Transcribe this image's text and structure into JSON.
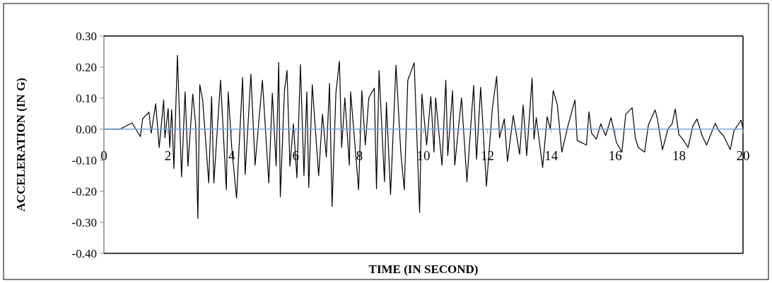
{
  "chart_data": {
    "type": "line",
    "xlabel": "TIME (IN SECOND)",
    "ylabel": "ACCELERATION (IN G)",
    "x": [
      0,
      0.5,
      0.88,
      1.14,
      1.21,
      1.41,
      1.48,
      1.62,
      1.73,
      1.87,
      1.91,
      2.01,
      2.06,
      2.12,
      2.19,
      2.3,
      2.43,
      2.54,
      2.63,
      2.78,
      2.87,
      2.94,
      3.0,
      3.09,
      3.28,
      3.37,
      3.44,
      3.65,
      3.83,
      3.89,
      4.0,
      4.15,
      4.34,
      4.42,
      4.6,
      4.73,
      4.96,
      5.16,
      5.27,
      5.39,
      5.47,
      5.52,
      5.65,
      5.73,
      5.82,
      5.93,
      6.04,
      6.15,
      6.26,
      6.35,
      6.41,
      6.52,
      6.72,
      6.84,
      6.96,
      7.06,
      7.14,
      7.26,
      7.37,
      7.44,
      7.54,
      7.68,
      7.72,
      7.97,
      8.07,
      8.18,
      8.29,
      8.46,
      8.53,
      8.61,
      8.78,
      8.84,
      8.97,
      9.14,
      9.29,
      9.4,
      9.51,
      9.71,
      9.8,
      9.88,
      9.95,
      10.1,
      10.23,
      10.33,
      10.38,
      10.58,
      10.7,
      10.76,
      10.91,
      10.98,
      11.19,
      11.36,
      11.57,
      11.66,
      11.79,
      11.97,
      12.16,
      12.29,
      12.38,
      12.53,
      12.63,
      12.81,
      13.01,
      13.12,
      13.23,
      13.4,
      13.46,
      13.53,
      13.73,
      13.87,
      13.97,
      14.06,
      14.19,
      14.33,
      14.52,
      14.74,
      14.81,
      15.1,
      15.18,
      15.26,
      15.41,
      15.55,
      15.7,
      15.87,
      16.04,
      16.21,
      16.33,
      16.53,
      16.63,
      16.72,
      16.92,
      17.04,
      17.25,
      17.32,
      17.48,
      17.65,
      17.78,
      17.88,
      17.99,
      18.14,
      18.28,
      18.43,
      18.56,
      18.72,
      18.86,
      19.13,
      19.24,
      19.39,
      19.6,
      19.72,
      19.94,
      20
    ],
    "series": [
      {
        "color": "#000000",
        "values": [
          0,
          0,
          0.02,
          -0.024,
          0.033,
          0.055,
          -0.013,
          0.082,
          -0.059,
          0.094,
          -0.028,
          0.067,
          -0.059,
          0.063,
          -0.127,
          0.238,
          -0.154,
          0.12,
          -0.119,
          0.113,
          0.017,
          -0.287,
          0.143,
          0.094,
          -0.173,
          0.105,
          -0.173,
          0.158,
          -0.195,
          0.12,
          -0.059,
          -0.222,
          0.166,
          -0.146,
          0.177,
          -0.116,
          0.158,
          -0.173,
          0.116,
          -0.119,
          0.215,
          -0.218,
          0.124,
          0.189,
          -0.119,
          0.017,
          -0.157,
          0.208,
          -0.15,
          0.12,
          -0.188,
          0.143,
          -0.15,
          0.048,
          -0.089,
          0.147,
          -0.249,
          0.116,
          0.219,
          -0.059,
          0.101,
          -0.116,
          0.12,
          -0.195,
          0.124,
          -0.051,
          0.101,
          0.132,
          -0.192,
          0.189,
          -0.169,
          0.086,
          -0.211,
          0.206,
          -0.074,
          -0.195,
          0.158,
          0.214,
          -0.043,
          -0.268,
          0.113,
          -0.051,
          0.105,
          -0.074,
          0.101,
          -0.116,
          0.158,
          -0.085,
          0.124,
          -0.116,
          0.101,
          -0.169,
          0.141,
          -0.097,
          0.135,
          -0.184,
          0.071,
          0.17,
          -0.028,
          0.033,
          -0.104,
          0.044,
          -0.081,
          0.078,
          -0.085,
          0.164,
          -0.032,
          0.037,
          -0.123,
          0.04,
          0,
          0.124,
          0.078,
          -0.074,
          0.01,
          0.094,
          -0.036,
          -0.051,
          0.056,
          -0.013,
          -0.032,
          0.017,
          -0.021,
          0.037,
          -0.043,
          -0.074,
          0.048,
          0.069,
          -0.028,
          -0.059,
          -0.074,
          0.014,
          0.062,
          0.033,
          -0.066,
          0,
          0.017,
          0.065,
          -0.017,
          -0.036,
          -0.059,
          0.01,
          0.033,
          -0.021,
          -0.051,
          0.019,
          -0.005,
          -0.021,
          -0.066,
          -0.005,
          0.029,
          0.002
        ]
      }
    ],
    "xlim": [
      0,
      20
    ],
    "xticks": [
      0,
      2,
      4,
      6,
      8,
      10,
      12,
      14,
      16,
      18,
      20
    ],
    "ylim": [
      -0.4,
      0.3
    ],
    "yticks": [
      {
        "value": -0.4,
        "label": "-0.40"
      },
      {
        "value": -0.3,
        "label": "-0.30"
      },
      {
        "value": -0.2,
        "label": "-0.20"
      },
      {
        "value": -0.1,
        "label": "-0.10"
      },
      {
        "value": 0,
        "label": "0.00"
      },
      {
        "value": 0.1,
        "label": "0.10"
      },
      {
        "value": 0.2,
        "label": "0.20"
      },
      {
        "value": 0.3,
        "label": "0.30"
      }
    ]
  }
}
